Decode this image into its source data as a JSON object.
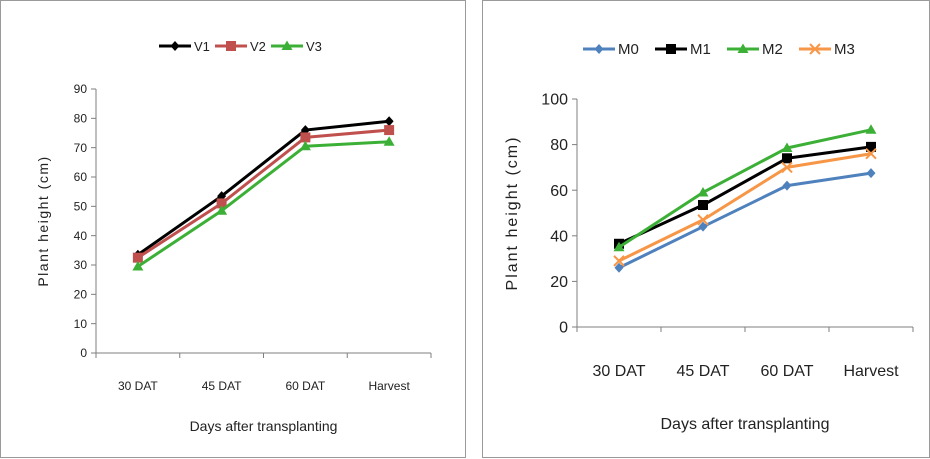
{
  "chart_data": [
    {
      "type": "line",
      "categories": [
        "30 DAT",
        "45 DAT",
        "60 DAT",
        "Harvest"
      ],
      "series": [
        {
          "name": "V1",
          "values": [
            33.5,
            53.5,
            76,
            79
          ],
          "color": "#000000",
          "marker": "diamond"
        },
        {
          "name": "V2",
          "values": [
            32.5,
            51,
            73.5,
            76
          ],
          "color": "#c0504d",
          "marker": "square"
        },
        {
          "name": "V3",
          "values": [
            29.5,
            48.5,
            70.5,
            72
          ],
          "color": "#3cb036",
          "marker": "triangle"
        }
      ],
      "xlabel": "Days after transplanting",
      "ylabel": "Plant height (cm)",
      "ylim": [
        0,
        90
      ],
      "yticks": [
        "0",
        "10",
        "20",
        "30",
        "40",
        "50",
        "60",
        "70",
        "80",
        "90"
      ],
      "grid": false,
      "legend": "top"
    },
    {
      "type": "line",
      "categories": [
        "30 DAT",
        "45 DAT",
        "60 DAT",
        "Harvest"
      ],
      "series": [
        {
          "name": "M0",
          "values": [
            26,
            44,
            62,
            67.5
          ],
          "color": "#4f81bd",
          "marker": "diamond"
        },
        {
          "name": "M1",
          "values": [
            36.5,
            53.5,
            74,
            79
          ],
          "color": "#000000",
          "marker": "square"
        },
        {
          "name": "M2",
          "values": [
            35,
            59,
            78.5,
            86.5
          ],
          "color": "#3cb036",
          "marker": "triangle"
        },
        {
          "name": "M3",
          "values": [
            29,
            47,
            70,
            76
          ],
          "color": "#f79646",
          "marker": "x"
        }
      ],
      "xlabel": "Days after transplanting",
      "ylabel": "Plant height (cm)",
      "ylim": [
        0,
        100
      ],
      "yticks": [
        "0",
        "20",
        "40",
        "60",
        "80",
        "100"
      ],
      "grid": false,
      "legend": "top"
    }
  ]
}
